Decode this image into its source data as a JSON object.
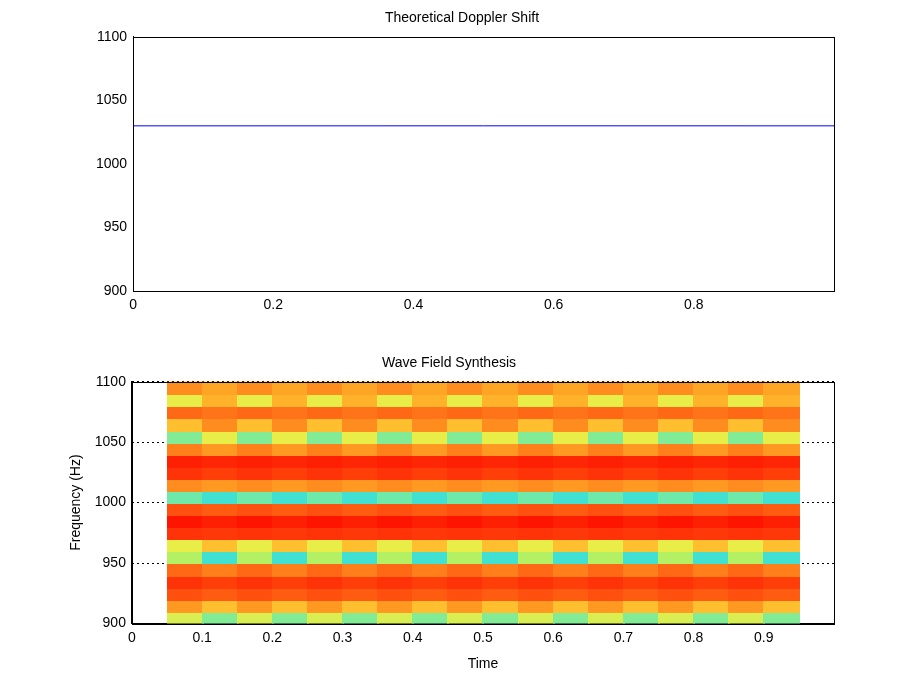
{
  "chart_data": [
    {
      "type": "line",
      "title": "Theoretical Doppler Shift",
      "x": [
        0,
        1
      ],
      "values": [
        1030,
        1030
      ],
      "color": "#0000ff",
      "xlim": [
        0,
        1
      ],
      "xticks": [
        0,
        0.2,
        0.4,
        0.6,
        0.8
      ],
      "ylim": [
        900,
        1100
      ],
      "yticks": [
        900,
        950,
        1000,
        1050,
        1100
      ],
      "grid": false
    },
    {
      "type": "heatmap",
      "title": "Wave Field Synthesis",
      "x_label": "Time",
      "y_label": "Frequency (Hz)",
      "xlim": [
        0,
        1
      ],
      "xticks": [
        0,
        0.1,
        0.2,
        0.3,
        0.4,
        0.5,
        0.6,
        0.7,
        0.8,
        0.9
      ],
      "ylim": [
        900,
        1100
      ],
      "yticks": [
        900,
        950,
        1000,
        1050,
        1100
      ],
      "grid": "y",
      "zlim": [
        0,
        1
      ],
      "x_bins": [
        0.05,
        0.1,
        0.15,
        0.2,
        0.25,
        0.3,
        0.35,
        0.4,
        0.45,
        0.5,
        0.55,
        0.6,
        0.65,
        0.7,
        0.75,
        0.8,
        0.85,
        0.9,
        0.95
      ],
      "y_bins": [
        900,
        910,
        920,
        930,
        940,
        950,
        960,
        970,
        980,
        990,
        1000,
        1010,
        1020,
        1030,
        1040,
        1050,
        1060,
        1070,
        1080,
        1090,
        1100
      ],
      "cells": [
        [
          0.6,
          0.5,
          0.6,
          0.5,
          0.6,
          0.5,
          0.6,
          0.5,
          0.6,
          0.5,
          0.6,
          0.5,
          0.6,
          0.5,
          0.6,
          0.5,
          0.6,
          0.5
        ],
        [
          0.78,
          0.72,
          0.78,
          0.72,
          0.78,
          0.72,
          0.78,
          0.72,
          0.78,
          0.72,
          0.78,
          0.72,
          0.78,
          0.72,
          0.78,
          0.72,
          0.78,
          0.72
        ],
        [
          0.9,
          0.88,
          0.9,
          0.88,
          0.9,
          0.88,
          0.9,
          0.88,
          0.9,
          0.88,
          0.9,
          0.88,
          0.9,
          0.88,
          0.9,
          0.88,
          0.9,
          0.88
        ],
        [
          0.95,
          0.93,
          0.95,
          0.93,
          0.95,
          0.93,
          0.95,
          0.93,
          0.95,
          0.93,
          0.95,
          0.93,
          0.95,
          0.93,
          0.95,
          0.93,
          0.95,
          0.93
        ],
        [
          0.86,
          0.82,
          0.86,
          0.82,
          0.86,
          0.82,
          0.86,
          0.82,
          0.86,
          0.82,
          0.86,
          0.82,
          0.86,
          0.82,
          0.86,
          0.82,
          0.86,
          0.82
        ],
        [
          0.55,
          0.42,
          0.55,
          0.42,
          0.55,
          0.42,
          0.55,
          0.42,
          0.55,
          0.42,
          0.55,
          0.42,
          0.55,
          0.42,
          0.55,
          0.42,
          0.55,
          0.42
        ],
        [
          0.62,
          0.72,
          0.62,
          0.72,
          0.62,
          0.72,
          0.62,
          0.72,
          0.62,
          0.72,
          0.62,
          0.72,
          0.62,
          0.72,
          0.62,
          0.72,
          0.62,
          0.72
        ],
        [
          0.95,
          0.94,
          0.95,
          0.94,
          0.95,
          0.94,
          0.95,
          0.94,
          0.95,
          0.94,
          0.95,
          0.94,
          0.95,
          0.94,
          0.95,
          0.94,
          0.95,
          0.94
        ],
        [
          1.0,
          0.98,
          1.0,
          0.98,
          1.0,
          0.98,
          1.0,
          0.98,
          1.0,
          0.98,
          1.0,
          0.98,
          1.0,
          0.98,
          1.0,
          0.98,
          1.0,
          0.98
        ],
        [
          0.9,
          0.88,
          0.9,
          0.88,
          0.9,
          0.88,
          0.9,
          0.88,
          0.9,
          0.88,
          0.9,
          0.88,
          0.9,
          0.88,
          0.9,
          0.88,
          0.9,
          0.88
        ],
        [
          0.48,
          0.42,
          0.48,
          0.42,
          0.48,
          0.42,
          0.48,
          0.42,
          0.48,
          0.42,
          0.48,
          0.42,
          0.48,
          0.42,
          0.48,
          0.42,
          0.48,
          0.42
        ],
        [
          0.8,
          0.78,
          0.8,
          0.78,
          0.8,
          0.78,
          0.8,
          0.78,
          0.8,
          0.78,
          0.8,
          0.78,
          0.8,
          0.78,
          0.8,
          0.78,
          0.8,
          0.78
        ],
        [
          0.95,
          0.93,
          0.95,
          0.93,
          0.95,
          0.93,
          0.95,
          0.93,
          0.95,
          0.93,
          0.95,
          0.93,
          0.95,
          0.93,
          0.95,
          0.93,
          0.95,
          0.93
        ],
        [
          0.98,
          0.97,
          0.98,
          0.97,
          0.98,
          0.97,
          0.98,
          0.97,
          0.98,
          0.97,
          0.98,
          0.97,
          0.98,
          0.97,
          0.98,
          0.97,
          0.98,
          0.97
        ],
        [
          0.82,
          0.78,
          0.82,
          0.78,
          0.82,
          0.78,
          0.82,
          0.78,
          0.82,
          0.78,
          0.82,
          0.78,
          0.82,
          0.78,
          0.82,
          0.78,
          0.82,
          0.78
        ],
        [
          0.5,
          0.62,
          0.5,
          0.62,
          0.5,
          0.62,
          0.5,
          0.62,
          0.5,
          0.62,
          0.5,
          0.62,
          0.5,
          0.62,
          0.5,
          0.62,
          0.5,
          0.62
        ],
        [
          0.72,
          0.8,
          0.72,
          0.8,
          0.72,
          0.8,
          0.72,
          0.8,
          0.72,
          0.8,
          0.72,
          0.8,
          0.72,
          0.8,
          0.72,
          0.8,
          0.72,
          0.8
        ],
        [
          0.86,
          0.84,
          0.86,
          0.84,
          0.86,
          0.84,
          0.86,
          0.84,
          0.86,
          0.84,
          0.86,
          0.84,
          0.86,
          0.84,
          0.86,
          0.84,
          0.86,
          0.84
        ],
        [
          0.62,
          0.74,
          0.62,
          0.74,
          0.62,
          0.74,
          0.62,
          0.74,
          0.62,
          0.74,
          0.62,
          0.74,
          0.62,
          0.74,
          0.62,
          0.74,
          0.62,
          0.74
        ],
        [
          0.8,
          0.76,
          0.8,
          0.76,
          0.8,
          0.76,
          0.8,
          0.76,
          0.8,
          0.76,
          0.8,
          0.76,
          0.8,
          0.76,
          0.8,
          0.76,
          0.8,
          0.76
        ]
      ]
    }
  ]
}
